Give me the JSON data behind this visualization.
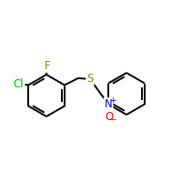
{
  "background": "#ffffff",
  "atom_colors": {
    "C": "#000000",
    "Cl": "#00bb00",
    "F": "#888800",
    "S": "#888800",
    "N": "#0000ee",
    "O": "#ff0000"
  },
  "bond_color": "#000000",
  "bond_lw": 1.4,
  "font_size": 8.5,
  "figsize": [
    2.0,
    2.0
  ],
  "dpi": 100,
  "xlim": [
    0.0,
    1.0
  ],
  "ylim": [
    0.28,
    0.78
  ]
}
